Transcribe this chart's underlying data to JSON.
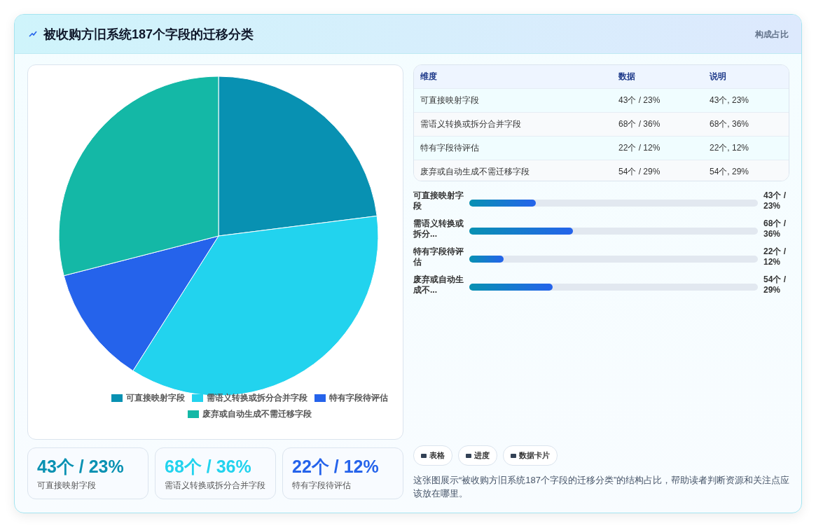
{
  "chart_data": {
    "type": "pie",
    "title": "被收购方旧系统187个字段的迁移分类",
    "subtitle": "构成占比",
    "categories": [
      "可直接映射字段",
      "需语义转换或拆分合并字段",
      "特有字段待评估",
      "废弃或自动生成不需迁移字段"
    ],
    "values": [
      23,
      36,
      12,
      29
    ],
    "colors": [
      "#0891b2",
      "#22d3ee",
      "#2563eb",
      "#14b8a6"
    ],
    "legend": "bottom",
    "annotations": [
      "表格",
      "进度",
      "数据卡片",
      "这张图展示“被收购方旧系统187个字段的迁移分类”的结构占比，帮助读者判断资源和关注点应该放在哪里。",
      "维度",
      "数据",
      "说明",
      "可直接映射字段",
      "43个 / 23%",
      "43个, 23%",
      "需语义转换或拆分合并字段",
      "68个 / 36%",
      "68个, 36%",
      "特有字段待评估",
      "22个 / 12%",
      "22个, 12%",
      "废弃或自动生成不需迁移字段",
      "54个 / 29%",
      "54个, 29%",
      "可直接映射字段",
      "需语义转换或拆分...",
      "特有字段待评估",
      "废弃或自动生成不...",
      "43个 / 23%",
      "68个 / 36%",
      "22个 / 12%",
      "54个 / 29%",
      "43个 / 23%",
      "可直接映射字段",
      "68个 / 36%",
      "需语义转换或拆分合并字段",
      "22个 / 12%",
      "特有字段待评估"
    ]
  }
}
